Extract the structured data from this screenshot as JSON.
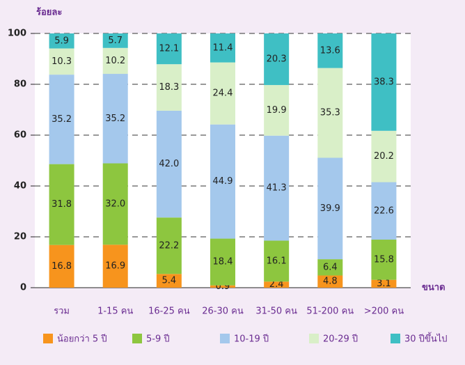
{
  "chart_data": {
    "type": "stacked-bar",
    "y_axis_label": "ร้อยละ",
    "x_axis_label": "ขนาด",
    "categories": [
      "รวม",
      "1-15 คน",
      "16-25 คน",
      "26-30 คน",
      "31-50 คน",
      "51-200 คน",
      ">200 คน"
    ],
    "series": [
      {
        "name": "น้อยกว่า 5 ปี",
        "color": "#f7941d",
        "values": [
          16.8,
          16.9,
          5.4,
          0.9,
          2.4,
          4.8,
          3.1
        ],
        "value_labels": [
          "16.8",
          "16.9",
          "5.4",
          "0.9",
          "2.4",
          "4.8",
          "3.1"
        ]
      },
      {
        "name": "5-9 ปี",
        "color": "#8dc63f",
        "values": [
          31.8,
          32.0,
          22.2,
          18.4,
          16.1,
          6.4,
          15.8
        ],
        "value_labels": [
          "31.8",
          "32.0",
          "22.2",
          "18.4",
          "16.1",
          "6.4",
          "15.8"
        ]
      },
      {
        "name": "10-19 ปี",
        "color": "#a4c8ec",
        "values": [
          35.2,
          35.2,
          42.0,
          44.9,
          41.3,
          39.9,
          22.6
        ],
        "value_labels": [
          "35.2",
          "35.2",
          "42.0",
          "44.9",
          "41.3",
          "39.9",
          "22.6"
        ]
      },
      {
        "name": "20-29 ปี",
        "color": "#d9efc8",
        "values": [
          10.3,
          10.2,
          18.3,
          24.4,
          19.9,
          35.3,
          20.2
        ],
        "value_labels": [
          "10.3",
          "10.2",
          "18.3",
          "24.4",
          "19.9",
          "35.3",
          "20.2"
        ]
      },
      {
        "name": "30 ปีขึ้นไป",
        "color": "#3fbfc4",
        "values": [
          5.9,
          5.7,
          12.1,
          11.4,
          20.3,
          13.6,
          38.3
        ],
        "value_labels": [
          "5.9",
          "5.7",
          "12.1",
          "11.4",
          "20.3",
          "13.6",
          "38.3"
        ]
      }
    ],
    "ylim": [
      0,
      100
    ],
    "yticks": [
      0,
      20,
      40,
      60,
      80,
      100
    ],
    "grid": true,
    "legend": "bottom"
  }
}
